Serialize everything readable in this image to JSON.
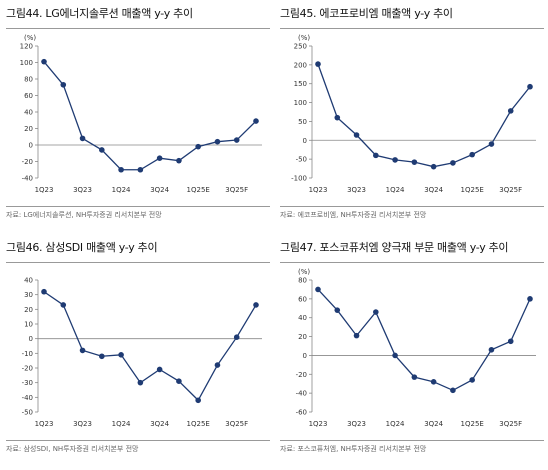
{
  "colors": {
    "marker": "#1f3b73",
    "line": "#1f3b73",
    "axis": "#888888"
  },
  "panels": [
    {
      "title": "그림44. LG에너지솔루션 매출액 y-y 추이",
      "source": "자료: LG에너지솔루션, NH투자증권 리서치본부 전망",
      "chart_data": {
        "type": "line",
        "ylabel": "(%)",
        "ylim": [
          -40,
          120
        ],
        "yticks": [
          -40,
          -20,
          0,
          20,
          40,
          60,
          80,
          100,
          120
        ],
        "categories": [
          "1Q23",
          "2Q23",
          "3Q23",
          "4Q23",
          "1Q24",
          "2Q24",
          "3Q24",
          "4Q24",
          "1Q25E",
          "2Q25E",
          "3Q25F",
          "4Q25F"
        ],
        "tick_labels": [
          "1Q23",
          "3Q23",
          "1Q24",
          "3Q24",
          "1Q25E",
          "3Q25F"
        ],
        "values": [
          101,
          73,
          8,
          -6,
          -30,
          -30,
          -16,
          -19,
          -2,
          4,
          6,
          29
        ]
      }
    },
    {
      "title": "그림45. 에코프로비엠 매출액 y-y 추이",
      "source": "자료: 에코프로비엠, NH투자증권 리서치본부 전망",
      "chart_data": {
        "type": "line",
        "ylabel": "(%)",
        "ylim": [
          -100,
          250
        ],
        "yticks": [
          -100,
          -50,
          0,
          50,
          100,
          150,
          200,
          250
        ],
        "categories": [
          "1Q23",
          "2Q23",
          "3Q23",
          "4Q23",
          "1Q24",
          "2Q24",
          "3Q24",
          "4Q24",
          "1Q25E",
          "2Q25E",
          "3Q25F",
          "4Q25F"
        ],
        "tick_labels": [
          "1Q23",
          "3Q23",
          "1Q24",
          "3Q24",
          "1Q25E",
          "3Q25F"
        ],
        "values": [
          202,
          60,
          14,
          -40,
          -52,
          -58,
          -70,
          -60,
          -38,
          -10,
          78,
          142
        ]
      }
    },
    {
      "title": "그림46. 삼성SDI 매출액 y-y 추이",
      "source": "자료: 삼성SDI, NH투자증권 리서치본부 전망",
      "chart_data": {
        "type": "line",
        "ylabel": "",
        "ylim": [
          -50,
          40
        ],
        "yticks": [
          -50,
          -40,
          -30,
          -20,
          -10,
          0,
          10,
          20,
          30,
          40
        ],
        "categories": [
          "1Q23",
          "2Q23",
          "3Q23",
          "4Q23",
          "1Q24",
          "2Q24",
          "3Q24",
          "4Q24",
          "1Q25E",
          "2Q25E",
          "3Q25F",
          "4Q25F"
        ],
        "tick_labels": [
          "1Q23",
          "3Q23",
          "1Q24",
          "3Q24",
          "1Q25E",
          "3Q25F"
        ],
        "values": [
          32,
          23,
          -8,
          -12,
          -11,
          -30,
          -21,
          -29,
          -42,
          -18,
          1,
          23
        ]
      }
    },
    {
      "title": "그림47. 포스코퓨처엠 양극재 부문 매출액 y-y 추이",
      "source": "자료: 포스코퓨처엠, NH투자증권 리서치본부 전망",
      "chart_data": {
        "type": "line",
        "ylabel": "(%)",
        "ylim": [
          -60,
          80
        ],
        "yticks": [
          -60,
          -40,
          -20,
          0,
          20,
          40,
          60,
          80
        ],
        "categories": [
          "1Q23",
          "2Q23",
          "3Q23",
          "4Q23",
          "1Q24",
          "2Q24",
          "3Q24",
          "4Q24",
          "1Q25E",
          "2Q25E",
          "3Q25F",
          "4Q25F"
        ],
        "tick_labels": [
          "1Q23",
          "3Q23",
          "1Q24",
          "3Q24",
          "1Q25E",
          "3Q25F"
        ],
        "values": [
          70,
          48,
          21,
          46,
          0,
          -23,
          -28,
          -37,
          -26,
          6,
          15,
          60
        ]
      }
    }
  ]
}
